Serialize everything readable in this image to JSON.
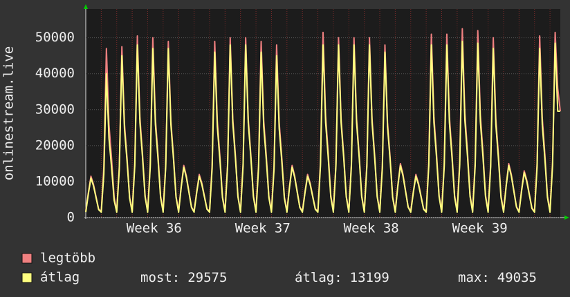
{
  "chart_data": {
    "type": "line",
    "y_label": "onlinestream.live",
    "xlim": [
      0,
      184
    ],
    "xticks": [
      {
        "value": 26.5,
        "label": "Week 36"
      },
      {
        "value": 68.6,
        "label": "Week 37"
      },
      {
        "value": 110.7,
        "label": "Week 38"
      },
      {
        "value": 152.8,
        "label": "Week 39"
      }
    ],
    "ylim": [
      0,
      58000
    ],
    "yticks": [
      0,
      10000,
      20000,
      30000,
      40000,
      50000
    ],
    "grid": true,
    "series": [
      {
        "name": "legtöbb",
        "color": "#f08080",
        "values": [
          1800,
          6900,
          11500,
          9200,
          5750,
          2300,
          1800,
          14100,
          47000,
          25850,
          16450,
          5640,
          1800,
          14250,
          47500,
          26100,
          16600,
          5700,
          1800,
          15150,
          50500,
          27800,
          17700,
          6060,
          1800,
          15000,
          50000,
          27500,
          17500,
          6000,
          1800,
          14700,
          49000,
          26950,
          17150,
          5880,
          1800,
          8700,
          14500,
          11600,
          7250,
          2900,
          1800,
          7200,
          12000,
          9600,
          6000,
          2400,
          1800,
          14700,
          49000,
          26950,
          17150,
          5880,
          1800,
          15000,
          50000,
          27500,
          17500,
          6000,
          1800,
          15000,
          50000,
          27500,
          17500,
          6000,
          1800,
          14700,
          49000,
          26950,
          17150,
          5880,
          1800,
          14400,
          48000,
          26400,
          16800,
          5760,
          1800,
          8700,
          14500,
          11600,
          7250,
          2900,
          1800,
          7200,
          12000,
          9600,
          6000,
          2400,
          1800,
          15450,
          51500,
          28300,
          18000,
          6180,
          1800,
          15000,
          50000,
          27500,
          17500,
          6000,
          1800,
          15000,
          50000,
          27500,
          17500,
          6000,
          1800,
          15000,
          50000,
          27500,
          17500,
          6000,
          1800,
          14400,
          48000,
          26400,
          16800,
          5760,
          1800,
          9000,
          15000,
          12000,
          7500,
          3000,
          1800,
          7200,
          12000,
          9600,
          6000,
          2400,
          1800,
          15300,
          51000,
          28050,
          17850,
          6120,
          1800,
          15300,
          51000,
          28050,
          17850,
          6120,
          1800,
          15750,
          52500,
          28900,
          18400,
          6300,
          1800,
          15600,
          52000,
          28600,
          18200,
          6240,
          1800,
          15000,
          50000,
          27500,
          17500,
          6000,
          1800,
          9000,
          15000,
          12000,
          7500,
          3000,
          1800,
          7800,
          13000,
          10400,
          6500,
          2600,
          1800,
          15150,
          50500,
          27800,
          17700,
          6060,
          1800,
          15450,
          51500,
          36000,
          29575
        ]
      },
      {
        "name": "átlag",
        "color": "#ffff80",
        "values": [
          1500,
          6600,
          11000,
          8800,
          5500,
          2200,
          1500,
          12000,
          40000,
          22000,
          14000,
          4800,
          1500,
          13500,
          45000,
          24750,
          15750,
          5400,
          1500,
          14400,
          48000,
          26400,
          16800,
          5760,
          1500,
          14100,
          47000,
          25850,
          16450,
          5640,
          1500,
          14100,
          47000,
          25850,
          16450,
          5640,
          1500,
          8400,
          14000,
          11200,
          7000,
          2800,
          1500,
          6900,
          11500,
          9200,
          5750,
          2300,
          1500,
          13800,
          46000,
          25300,
          16100,
          5520,
          1500,
          14400,
          48000,
          26400,
          16800,
          5760,
          1500,
          14400,
          48000,
          26400,
          16800,
          5760,
          1500,
          13800,
          46000,
          25300,
          16100,
          5520,
          1500,
          13500,
          45000,
          24750,
          15750,
          5400,
          1500,
          8400,
          14000,
          11200,
          7000,
          2800,
          1500,
          6900,
          11500,
          9200,
          5750,
          2300,
          1500,
          14400,
          48000,
          26400,
          16800,
          5760,
          1500,
          14400,
          48000,
          26400,
          16800,
          5760,
          1500,
          14400,
          48000,
          26400,
          16800,
          5760,
          1500,
          14400,
          48000,
          26400,
          16800,
          5760,
          1500,
          13800,
          46000,
          25300,
          16100,
          5520,
          1500,
          8700,
          14500,
          11600,
          7250,
          2900,
          1500,
          6900,
          11500,
          9200,
          5750,
          2300,
          1500,
          14400,
          48000,
          26400,
          16800,
          5760,
          1500,
          14400,
          48000,
          26400,
          16800,
          5760,
          1500,
          14700,
          49000,
          26950,
          17150,
          5880,
          1500,
          14550,
          48500,
          26700,
          17000,
          5820,
          1500,
          14100,
          47000,
          25850,
          16450,
          5640,
          1500,
          8700,
          14500,
          11600,
          7250,
          2900,
          1500,
          7500,
          12500,
          10000,
          6250,
          2500,
          1500,
          14100,
          47000,
          25850,
          16450,
          5640,
          1500,
          14550,
          48500,
          29575,
          29575
        ]
      }
    ],
    "stats": [
      {
        "label": "most:",
        "value": 29575
      },
      {
        "label": "átlag:",
        "value": 13199
      },
      {
        "label": "max:",
        "value": 49035
      }
    ]
  }
}
